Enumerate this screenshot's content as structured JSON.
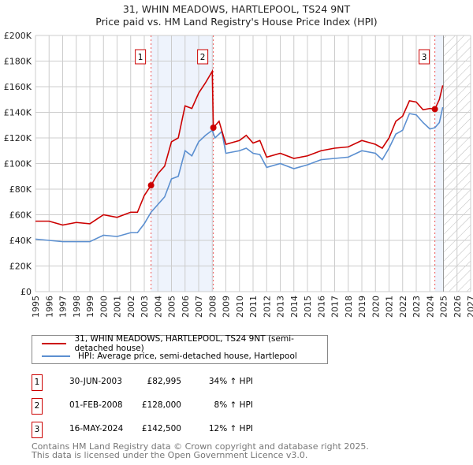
{
  "chart_data": {
    "type": "line",
    "title": "31, WHIN MEADOWS, HARTLEPOOL, TS24 9NT",
    "subtitle": "Price paid vs. HM Land Registry's House Price Index (HPI)",
    "xlim": [
      1995,
      2027
    ],
    "ylim": [
      0,
      200000
    ],
    "x_ticks": [
      "1995",
      "1996",
      "1997",
      "1998",
      "1999",
      "2000",
      "2001",
      "2002",
      "2003",
      "2004",
      "2005",
      "2006",
      "2007",
      "2008",
      "2009",
      "2010",
      "2011",
      "2012",
      "2013",
      "2014",
      "2015",
      "2016",
      "2017",
      "2018",
      "2019",
      "2020",
      "2021",
      "2022",
      "2023",
      "2024",
      "2025",
      "2026",
      "2027"
    ],
    "y_ticks": [
      {
        "v": 0,
        "label": "£0"
      },
      {
        "v": 20000,
        "label": "£20K"
      },
      {
        "v": 40000,
        "label": "£40K"
      },
      {
        "v": 60000,
        "label": "£60K"
      },
      {
        "v": 80000,
        "label": "£80K"
      },
      {
        "v": 100000,
        "label": "£100K"
      },
      {
        "v": 120000,
        "label": "£120K"
      },
      {
        "v": 140000,
        "label": "£140K"
      },
      {
        "v": 160000,
        "label": "£160K"
      },
      {
        "v": 180000,
        "label": "£180K"
      },
      {
        "v": 200000,
        "label": "£200K"
      }
    ],
    "grid": true,
    "series": [
      {
        "name": "31, WHIN MEADOWS, HARTLEPOOL, TS24 9NT (semi-detached house)",
        "color": "#cc0000",
        "x": [
          1995,
          1996,
          1997,
          1998,
          1999,
          2000,
          2001,
          2002,
          2002.5,
          2003,
          2003.5,
          2004,
          2004.5,
          2005,
          2005.5,
          2006,
          2006.5,
          2007,
          2007.5,
          2008.0,
          2008.08,
          2008.5,
          2009,
          2010,
          2010.5,
          2011,
          2011.5,
          2012,
          2013,
          2014,
          2015,
          2016,
          2017,
          2018,
          2019,
          2020,
          2020.5,
          2021,
          2021.5,
          2022,
          2022.5,
          2023,
          2023.5,
          2024,
          2024.37,
          2024.7,
          2024.95
        ],
        "y": [
          55000,
          55000,
          52000,
          54000,
          53000,
          60000,
          58000,
          62000,
          62000,
          75000,
          83000,
          92000,
          98000,
          117000,
          120000,
          145000,
          143000,
          155000,
          163000,
          172000,
          128000,
          133000,
          115000,
          118000,
          122000,
          116000,
          118000,
          105000,
          108000,
          104000,
          106000,
          110000,
          112000,
          113000,
          118000,
          115000,
          112000,
          120000,
          133000,
          137000,
          149000,
          148000,
          142000,
          143000,
          142500,
          150000,
          161000
        ]
      },
      {
        "name": "HPI: Average price, semi-detached house, Hartlepool",
        "color": "#5b8fd0",
        "x": [
          1995,
          1997,
          1999,
          2000,
          2001,
          2002,
          2002.5,
          2003,
          2003.5,
          2004,
          2004.5,
          2005,
          2005.5,
          2006,
          2006.5,
          2007,
          2007.5,
          2008,
          2008.2,
          2008.7,
          2009,
          2010,
          2010.5,
          2011,
          2011.5,
          2012,
          2013,
          2014,
          2015,
          2016,
          2017,
          2018,
          2019,
          2020,
          2020.5,
          2021,
          2021.5,
          2022,
          2022.5,
          2023,
          2023.5,
          2024,
          2024.37,
          2024.7,
          2024.95
        ],
        "y": [
          41000,
          39000,
          39000,
          44000,
          43000,
          46000,
          46000,
          53000,
          62000,
          68000,
          74000,
          88000,
          90000,
          110000,
          106000,
          117000,
          122000,
          126000,
          120000,
          125000,
          108000,
          110000,
          112000,
          108000,
          107000,
          97000,
          100000,
          96000,
          99000,
          103000,
          104000,
          105000,
          110000,
          108000,
          103000,
          112000,
          123000,
          126000,
          139000,
          138000,
          132000,
          127000,
          128000,
          132000,
          144000
        ]
      }
    ],
    "sales": [
      {
        "id": "1",
        "x": 2003.5,
        "y": 82995,
        "date": "30-JUN-2003",
        "price": "£82,995",
        "hpi": "34% ↑ HPI"
      },
      {
        "id": "2",
        "x": 2008.08,
        "y": 128000,
        "date": "01-FEB-2008",
        "price": "£128,000",
        "hpi": "8% ↑ HPI"
      },
      {
        "id": "3",
        "x": 2024.37,
        "y": 142500,
        "date": "16-MAY-2024",
        "price": "£142,500",
        "hpi": "12% ↑ HPI"
      }
    ],
    "forecast_from": 2025,
    "footer": [
      "Contains HM Land Registry data © Crown copyright and database right 2025.",
      "This data is licensed under the Open Government Licence v3.0."
    ]
  }
}
